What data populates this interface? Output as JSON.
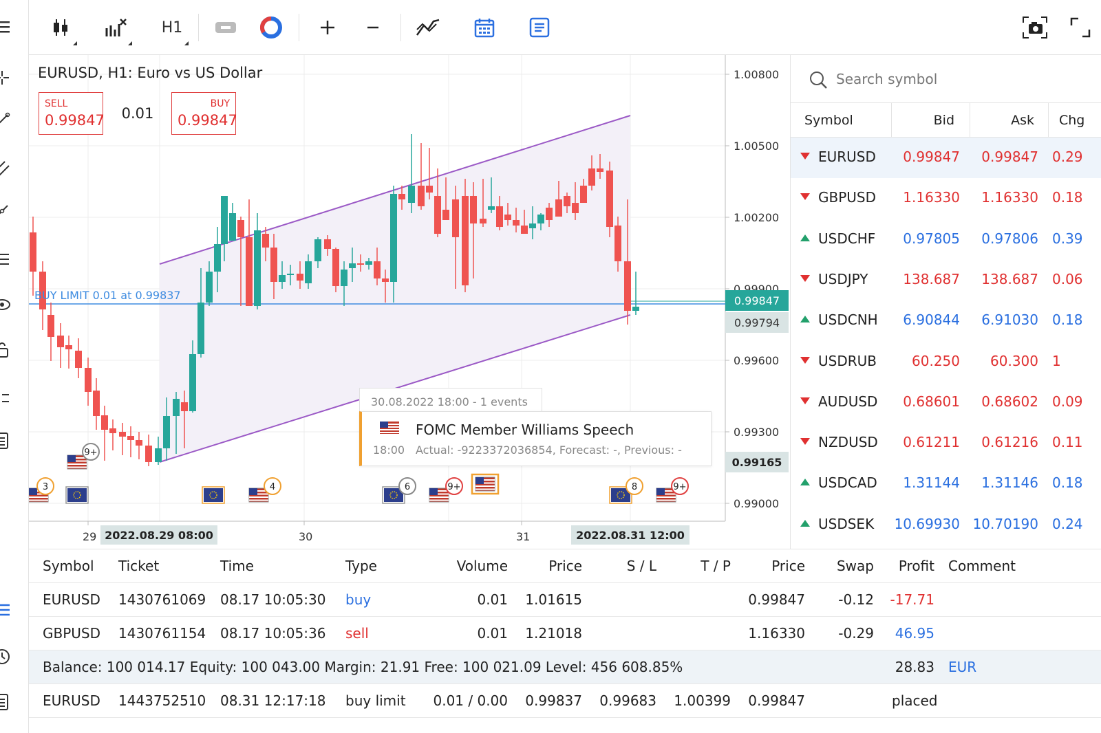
{
  "toolbar": {
    "timeframe": "H1"
  },
  "chart": {
    "title": "EURUSD, H1: Euro vs US Dollar",
    "sell_label": "SELL",
    "sell_price": "0.99847",
    "buy_label": "BUY",
    "buy_price": "0.99847",
    "volume": "0.01",
    "buy_limit_label": "BUY LIMIT 0.01 at 0.99837",
    "price_ticks": [
      "1.00800",
      "1.00500",
      "1.00200",
      "0.99900",
      "0.99600",
      "0.99300",
      "0.99000"
    ],
    "current_price_tag": "0.99847",
    "hover_price_tag": "0.99794",
    "low_price_tag": "0.99165",
    "date_ticks": [
      "29",
      "30",
      "31"
    ],
    "crosshair_date_left": "2022.08.29 08:00",
    "crosshair_date_right": "2022.08.31 12:00",
    "event_badges": [
      "3",
      "9+",
      "4",
      "6",
      "9+",
      "8",
      "9+"
    ],
    "colors": {
      "bull": "#26a69a",
      "bear": "#ef5350",
      "channel": "#9b59c6",
      "buy_limit": "#3d8be0"
    }
  },
  "tooltip": {
    "header": "30.08.2022 18:00 - 1 events",
    "title": "FOMC Member Williams Speech",
    "time": "18:00",
    "detail": "Actual: -9223372036854, Forecast: -, Previous: -"
  },
  "watchlist": {
    "search_placeholder": "Search symbol",
    "headers": {
      "symbol": "Symbol",
      "bid": "Bid",
      "ask": "Ask",
      "chg": "Chg"
    },
    "rows": [
      {
        "symbol": "EURUSD",
        "bid": "0.99847",
        "ask": "0.99847",
        "chg": "0.29",
        "dir": "down"
      },
      {
        "symbol": "GBPUSD",
        "bid": "1.16330",
        "ask": "1.16330",
        "chg": "0.18",
        "dir": "down"
      },
      {
        "symbol": "USDCHF",
        "bid": "0.97805",
        "ask": "0.97806",
        "chg": "0.39",
        "dir": "up"
      },
      {
        "symbol": "USDJPY",
        "bid": "138.687",
        "ask": "138.687",
        "chg": "0.06",
        "dir": "down"
      },
      {
        "symbol": "USDCNH",
        "bid": "6.90844",
        "ask": "6.91030",
        "chg": "0.18",
        "dir": "up"
      },
      {
        "symbol": "USDRUB",
        "bid": "60.250",
        "ask": "60.300",
        "chg": "1",
        "dir": "down"
      },
      {
        "symbol": "AUDUSD",
        "bid": "0.68601",
        "ask": "0.68602",
        "chg": "0.09",
        "dir": "down"
      },
      {
        "symbol": "NZDUSD",
        "bid": "0.61211",
        "ask": "0.61216",
        "chg": "0.11",
        "dir": "down"
      },
      {
        "symbol": "USDCAD",
        "bid": "1.31144",
        "ask": "1.31146",
        "chg": "0.18",
        "dir": "up"
      },
      {
        "symbol": "USDSEK",
        "bid": "10.69930",
        "ask": "10.70190",
        "chg": "0.24",
        "dir": "up"
      }
    ]
  },
  "trade": {
    "headers": [
      "Symbol",
      "Ticket",
      "Time",
      "Type",
      "Volume",
      "Price",
      "S / L",
      "T / P",
      "Price",
      "Swap",
      "Profit",
      "Comment"
    ],
    "positions": [
      {
        "symbol": "EURUSD",
        "ticket": "1430761069",
        "time": "08.17 10:05:30",
        "type": "buy",
        "volume": "0.01",
        "price": "1.01615",
        "sl": "",
        "tp": "",
        "cur_price": "0.99847",
        "swap": "-0.12",
        "profit": "-17.71"
      },
      {
        "symbol": "GBPUSD",
        "ticket": "1430761154",
        "time": "08.17 10:05:36",
        "type": "sell",
        "volume": "0.01",
        "price": "1.21018",
        "sl": "",
        "tp": "",
        "cur_price": "1.16330",
        "swap": "-0.29",
        "profit": "46.95"
      }
    ],
    "summary": {
      "text": "Balance: 100 014.17  Equity: 100 043.00  Margin: 21.91  Free: 100 021.09  Level: 456 608.85%",
      "profit": "28.83",
      "currency": "EUR"
    },
    "order": {
      "symbol": "EURUSD",
      "ticket": "1443752510",
      "time": "08.31 12:17:18",
      "type": "buy limit",
      "volume": "0.01 / 0.00",
      "price": "0.99837",
      "sl": "0.99683",
      "tp": "1.00399",
      "cur_price": "0.99847",
      "state": "placed"
    }
  }
}
